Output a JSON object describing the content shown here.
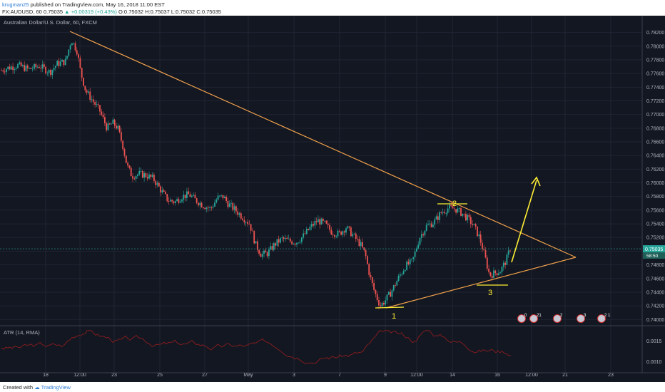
{
  "header": {
    "user": "krugman25",
    "published": "published on TradingView.com, May 16, 2018 11:00 EST",
    "symbol": "FX:AUDUSD, 60",
    "last": "0.75035",
    "change_arrow": "▲",
    "change": "+0.00319 (+0.43%)",
    "open": "O:0.75032",
    "high": "H:0.75037",
    "low": "L:0.75032",
    "close": "C:0.75035"
  },
  "chart_title": "Australian Dollar/U.S. Dollar, 60, FXCM",
  "atr_title": "ATR (14, RMA)",
  "footer": {
    "created": "Created with",
    "brand": "TradingView"
  },
  "colors": {
    "background": "#131722",
    "up_candle": "#26a69a",
    "down_candle": "#ef5350",
    "trendline": "#f0a04b",
    "projection_arrow": "#ffee33",
    "atr_line": "#8b1d1d",
    "price_line": "#26a69a"
  },
  "chart_data": {
    "type": "candlestick",
    "symbol": "Australian Dollar/U.S. Dollar",
    "interval": "60",
    "y_ticks": [
      "0.78200",
      "0.78000",
      "0.77800",
      "0.77600",
      "0.77400",
      "0.77200",
      "0.77000",
      "0.76800",
      "0.76600",
      "0.76400",
      "0.76200",
      "0.76000",
      "0.75800",
      "0.75600",
      "0.75400",
      "0.75200",
      "0.75000",
      "0.74800",
      "0.74600",
      "0.74400",
      "0.74200",
      "0.74000"
    ],
    "ylim": [
      0.7393,
      0.7829
    ],
    "x_ticks": [
      "18",
      "12:00",
      "23",
      "25",
      "27",
      "May",
      "3",
      "7",
      "9",
      "12:00",
      "14",
      "16",
      "12:00",
      "21",
      "23"
    ],
    "price_path": [
      [
        0,
        0.7764
      ],
      [
        10,
        0.7768
      ],
      [
        25,
        0.7772
      ],
      [
        40,
        0.7766
      ],
      [
        55,
        0.7771
      ],
      [
        70,
        0.7762
      ],
      [
        80,
        0.7774
      ],
      [
        92,
        0.7778
      ],
      [
        100,
        0.781
      ],
      [
        108,
        0.7793
      ],
      [
        113,
        0.7762
      ],
      [
        120,
        0.7735
      ],
      [
        130,
        0.772
      ],
      [
        140,
        0.7705
      ],
      [
        150,
        0.768
      ],
      [
        158,
        0.7688
      ],
      [
        165,
        0.768
      ],
      [
        172,
        0.7655
      ],
      [
        178,
        0.7625
      ],
      [
        185,
        0.761
      ],
      [
        195,
        0.7613
      ],
      [
        205,
        0.7611
      ],
      [
        215,
        0.7606
      ],
      [
        225,
        0.759
      ],
      [
        235,
        0.7575
      ],
      [
        245,
        0.7572
      ],
      [
        255,
        0.758
      ],
      [
        265,
        0.7583
      ],
      [
        275,
        0.7574
      ],
      [
        285,
        0.7567
      ],
      [
        295,
        0.7562
      ],
      [
        305,
        0.7578
      ],
      [
        313,
        0.758
      ],
      [
        320,
        0.7569
      ],
      [
        330,
        0.756
      ],
      [
        340,
        0.755
      ],
      [
        350,
        0.754
      ],
      [
        358,
        0.751
      ],
      [
        366,
        0.7495
      ],
      [
        375,
        0.7497
      ],
      [
        385,
        0.751
      ],
      [
        395,
        0.7518
      ],
      [
        405,
        0.7515
      ],
      [
        415,
        0.7513
      ],
      [
        425,
        0.7522
      ],
      [
        435,
        0.7535
      ],
      [
        445,
        0.7545
      ],
      [
        455,
        0.754
      ],
      [
        465,
        0.7528
      ],
      [
        475,
        0.7525
      ],
      [
        485,
        0.7535
      ],
      [
        495,
        0.7523
      ],
      [
        505,
        0.751
      ],
      [
        512,
        0.7495
      ],
      [
        518,
        0.7465
      ],
      [
        525,
        0.744
      ],
      [
        533,
        0.742
      ],
      [
        540,
        0.7428
      ],
      [
        548,
        0.744
      ],
      [
        558,
        0.746
      ],
      [
        568,
        0.7478
      ],
      [
        578,
        0.7485
      ],
      [
        588,
        0.752
      ],
      [
        598,
        0.7537
      ],
      [
        608,
        0.7542
      ],
      [
        618,
        0.7556
      ],
      [
        628,
        0.7563
      ],
      [
        638,
        0.7562
      ],
      [
        648,
        0.7555
      ],
      [
        658,
        0.7545
      ],
      [
        665,
        0.7535
      ],
      [
        672,
        0.752
      ],
      [
        680,
        0.749
      ],
      [
        686,
        0.7465
      ],
      [
        694,
        0.7468
      ],
      [
        702,
        0.7472
      ],
      [
        710,
        0.7488
      ],
      [
        716,
        0.7508
      ]
    ],
    "atr_ticks": [
      "0.0015",
      "0.0010"
    ],
    "annotations": [
      "1",
      "2",
      "3"
    ]
  },
  "labels": {
    "last_price_tag": "0.75035",
    "countdown_tag": "58:50",
    "event_markers": [
      "0",
      "21",
      "2",
      "3",
      "2 1"
    ]
  }
}
